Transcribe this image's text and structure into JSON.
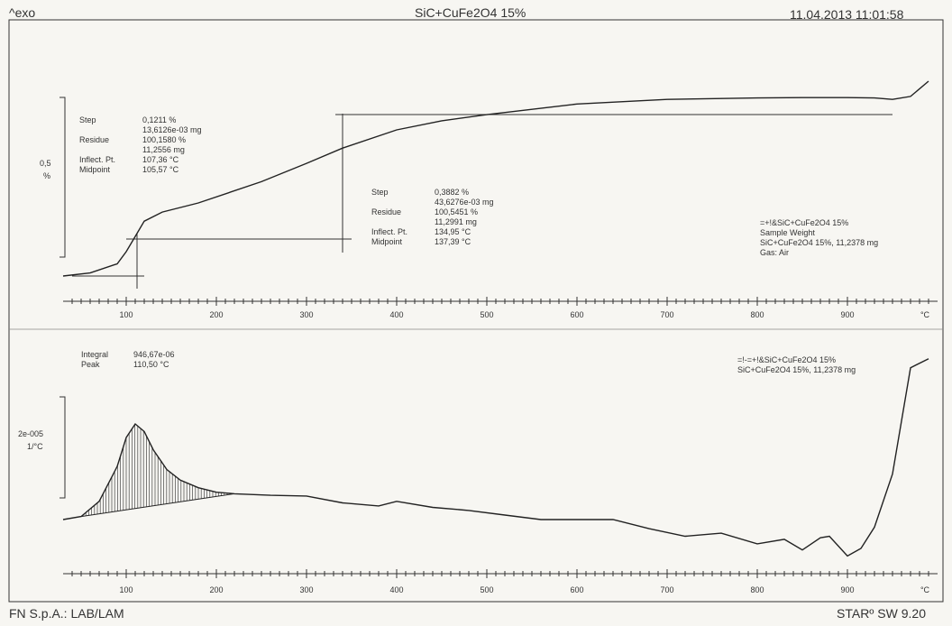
{
  "header": {
    "left": "^exo",
    "title": "SiC+CuFe2O4 15%",
    "datetime": "11.04.2013 11:01:58"
  },
  "footer": {
    "left": "FN S.p.A.: LAB/LAM",
    "right": "STARº SW 9.20"
  },
  "top_panel": {
    "scale_label": [
      "0,5",
      "%"
    ],
    "step1": {
      "labels": [
        "Step",
        "Residue",
        "",
        "Inflect. Pt.",
        "Midpoint"
      ],
      "values": [
        "0,1211 %",
        "13,6126e-03 mg",
        "100,1580 %",
        "11,2556 mg",
        "107,36 °C",
        "105,57 °C"
      ]
    },
    "step2": {
      "labels": [
        "Step",
        "",
        "Residue",
        "",
        "Inflect. Pt.",
        "Midpoint"
      ],
      "values": [
        "0,3882 %",
        "43,6276e-03 mg",
        "100,5451 %",
        "11,2991 mg",
        "134,95 °C",
        "137,39 °C"
      ]
    },
    "legend": [
      "=+!&SiC+CuFe2O4 15%",
      "Sample Weight",
      "SiC+CuFe2O4 15%, 11,2378 mg",
      "Gas: Air"
    ]
  },
  "bottom_panel": {
    "scale_label": [
      "2e-005",
      "1/°C"
    ],
    "integral": {
      "labels": [
        "Integral",
        "Peak"
      ],
      "values": [
        "946,67e-06",
        "110,50 °C"
      ]
    },
    "legend": [
      "=!-=+!&SiC+CuFe2O4 15%",
      "SiC+CuFe2O4 15%, 11,2378 mg"
    ]
  },
  "axis": {
    "ticks": [
      100,
      200,
      300,
      400,
      500,
      600,
      700,
      800,
      900
    ],
    "unit": "°C"
  },
  "chart_data": [
    {
      "type": "line",
      "title": "SiC+CuFe2O4 15%",
      "xlabel": "°C",
      "ylabel": "",
      "xlim": [
        30,
        1000
      ],
      "series": [
        {
          "name": "=+!&SiC+CuFe2O4 15%",
          "x": [
            30,
            60,
            90,
            100,
            110,
            120,
            140,
            180,
            250,
            300,
            340,
            400,
            450,
            500,
            600,
            700,
            800,
            850,
            900,
            930,
            950,
            970,
            990
          ],
          "y": [
            99.96,
            99.97,
            100.0,
            100.04,
            100.09,
            100.14,
            100.17,
            100.2,
            100.27,
            100.33,
            100.38,
            100.44,
            100.47,
            100.49,
            100.525,
            100.54,
            100.545,
            100.546,
            100.546,
            100.545,
            100.54,
            100.55,
            100.6
          ]
        }
      ]
    },
    {
      "type": "area",
      "title": "",
      "xlabel": "°C",
      "ylabel": "1/°C",
      "xlim": [
        30,
        1000
      ],
      "series": [
        {
          "name": "=!-=+!&SiC+CuFe2O4 15%",
          "x": [
            30,
            50,
            70,
            90,
            100,
            110,
            120,
            130,
            145,
            160,
            180,
            200,
            220,
            260,
            300,
            340,
            380,
            400,
            440,
            480,
            520,
            560,
            600,
            640,
            680,
            720,
            760,
            800,
            830,
            850,
            870,
            880,
            900,
            915,
            930,
            950,
            970,
            990
          ],
          "y": [
            0,
            2e-06,
            1.2e-05,
            3.5e-05,
            5.4e-05,
            6.3e-05,
            5.8e-05,
            4.6e-05,
            3.3e-05,
            2.6e-05,
            2.1e-05,
            1.8e-05,
            1.7e-05,
            1.6e-05,
            1.55e-05,
            1.1e-05,
            9e-06,
            1.2e-05,
            8e-06,
            6e-06,
            3e-06,
            0.0,
            0.0,
            0.0,
            -6e-06,
            -1.1e-05,
            -9e-06,
            -1.6e-05,
            -1.3e-05,
            -2e-05,
            -1.2e-05,
            -1.1e-05,
            -2.4e-05,
            -1.9e-05,
            -5e-06,
            3e-05,
            0.0001,
            0.000106
          ]
        }
      ]
    }
  ]
}
